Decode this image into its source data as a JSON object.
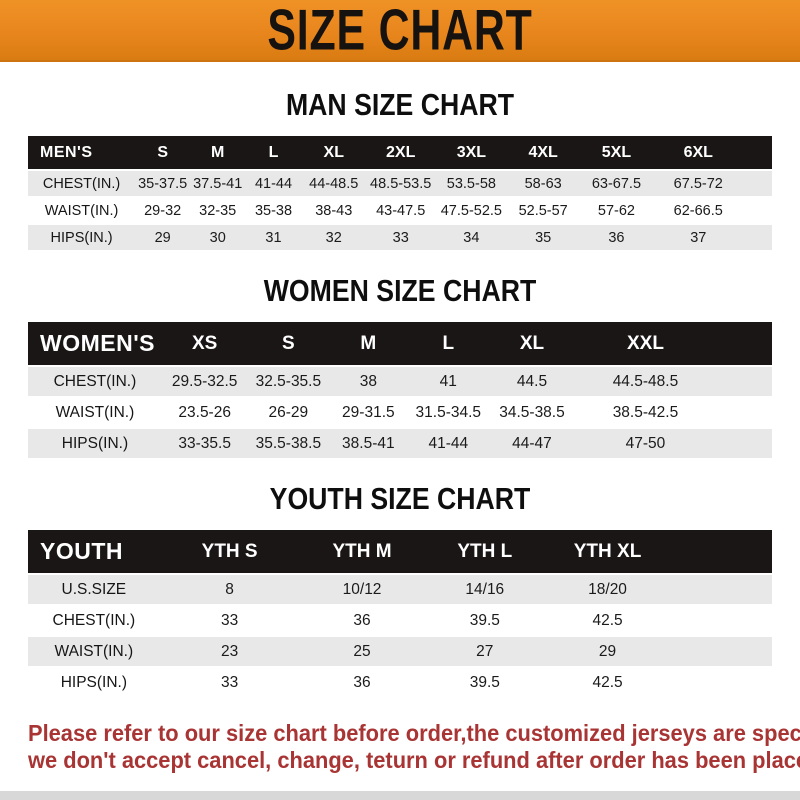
{
  "banner": {
    "title": "SIZE CHART",
    "bg_color": "#e8861d",
    "text_color": "#161210"
  },
  "colors": {
    "header_bar_bg": "#1a1615",
    "row_alt_bg": "#e8e8e8",
    "note_color": "#a93434",
    "bottom_strip": "#d8d8d8"
  },
  "sections": [
    {
      "title": "MAN SIZE CHART",
      "header_label": "MEN'S",
      "columns": [
        "S",
        "M",
        "L",
        "XL",
        "2XL",
        "3XL",
        "4XL",
        "5XL",
        "6XL"
      ],
      "rows": [
        {
          "label": "CHEST(IN.)",
          "values": [
            "35-37.5",
            "37.5-41",
            "41-44",
            "44-48.5",
            "48.5-53.5",
            "53.5-58",
            "58-63",
            "63-67.5",
            "67.5-72"
          ]
        },
        {
          "label": "WAIST(IN.)",
          "values": [
            "29-32",
            "32-35",
            "35-38",
            "38-43",
            "43-47.5",
            "47.5-52.5",
            "52.5-57",
            "57-62",
            "62-66.5"
          ]
        },
        {
          "label": "HIPS(IN.)",
          "values": [
            "29",
            "30",
            "31",
            "32",
            "33",
            "34",
            "35",
            "36",
            "37"
          ]
        }
      ]
    },
    {
      "title": "WOMEN SIZE CHART",
      "header_label": "WOMEN'S",
      "columns": [
        "XS",
        "S",
        "M",
        "L",
        "XL",
        "XXL"
      ],
      "rows": [
        {
          "label": "CHEST(IN.)",
          "values": [
            "29.5-32.5",
            "32.5-35.5",
            "38",
            "41",
            "44.5",
            "44.5-48.5"
          ]
        },
        {
          "label": "WAIST(IN.)",
          "values": [
            "23.5-26",
            "26-29",
            "29-31.5",
            "31.5-34.5",
            "34.5-38.5",
            "38.5-42.5"
          ]
        },
        {
          "label": "HIPS(IN.)",
          "values": [
            "33-35.5",
            "35.5-38.5",
            "38.5-41",
            "41-44",
            "44-47",
            "47-50"
          ]
        }
      ]
    },
    {
      "title": "YOUTH SIZE CHART",
      "header_label": "YOUTH",
      "columns": [
        "YTH S",
        "YTH M",
        "YTH L",
        "YTH XL"
      ],
      "rows": [
        {
          "label": "U.S.SIZE",
          "values": [
            "8",
            "10/12",
            "14/16",
            "18/20"
          ]
        },
        {
          "label": "CHEST(IN.)",
          "values": [
            "33",
            "36",
            "39.5",
            "42.5"
          ]
        },
        {
          "label": "WAIST(IN.)",
          "values": [
            "23",
            "25",
            "27",
            "29"
          ]
        },
        {
          "label": "HIPS(IN.)",
          "values": [
            "33",
            "36",
            "39.5",
            "42.5"
          ]
        }
      ]
    }
  ],
  "note": {
    "line1": "Please refer to our size chart before order,the customized jerseys are special products,",
    "line2": "we don't accept cancel, change, teturn or refund after order has been placed!"
  }
}
